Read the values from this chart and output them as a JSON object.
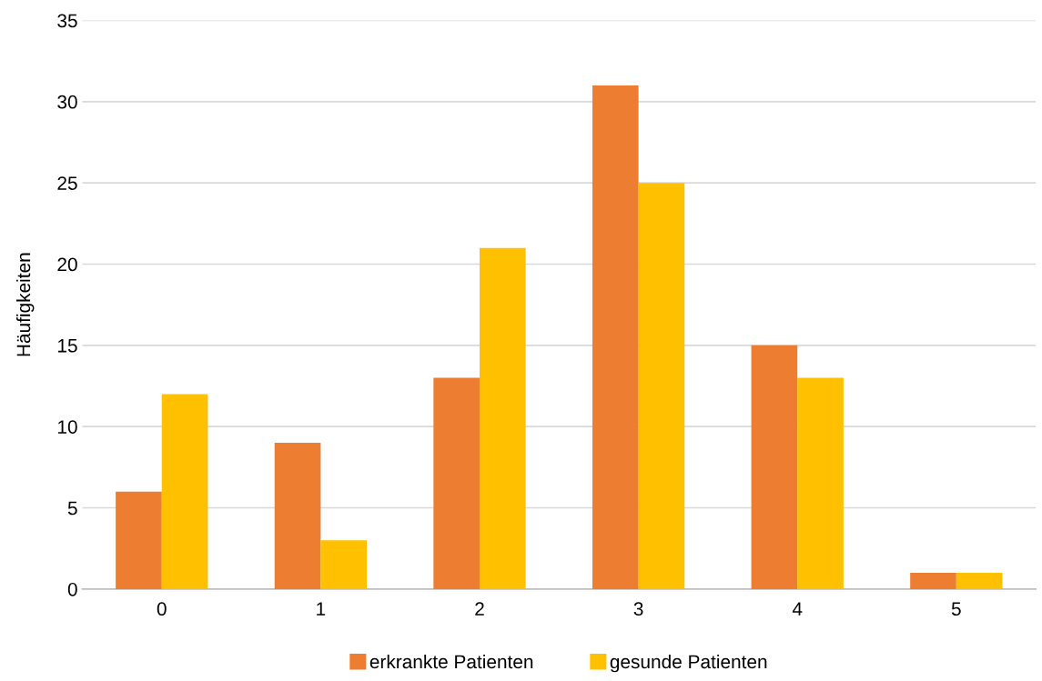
{
  "chart_data": {
    "type": "bar",
    "ylabel": "Häufigkeiten",
    "categories": [
      "0",
      "1",
      "2",
      "3",
      "4",
      "5"
    ],
    "series": [
      {
        "name": "erkrankte Patienten",
        "color": "#ed7d31",
        "values": [
          6,
          9,
          13,
          31,
          15,
          1
        ]
      },
      {
        "name": "gesunde Patienten",
        "color": "#ffc000",
        "values": [
          12,
          3,
          21,
          25,
          13,
          1
        ]
      }
    ],
    "ylim": [
      0,
      35
    ],
    "yticks": [
      0,
      5,
      10,
      15,
      20,
      25,
      30,
      35
    ],
    "grid": "y",
    "legend": "bottom"
  }
}
